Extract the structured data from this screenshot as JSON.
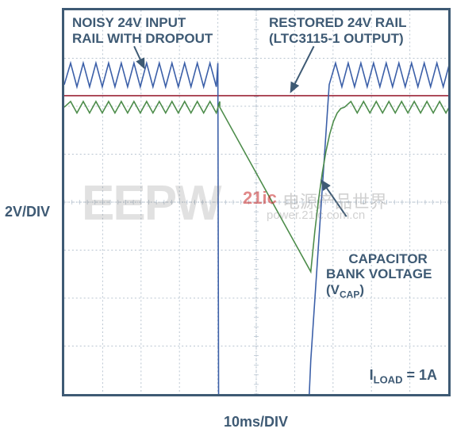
{
  "chart": {
    "type": "line",
    "frame_color": "#3e5a74",
    "background_color": "#ffffff",
    "grid_color": "#b8c4d0",
    "grid_dash": "2 3",
    "divisions_x": 10,
    "divisions_y": 8,
    "x_per_div": "10ms/DIV",
    "y_per_div": "2V/DIV",
    "label_fontsize": 18,
    "label_color": "#3e5a74",
    "arrow_color": "#3e5a74",
    "arrow_stroke_width": 2,
    "annotations": {
      "noisy_input": "NOISY 24V INPUT\nRAIL WITH DROPOUT",
      "restored": "RESTORED 24V RAIL\n(LTC3115-1 OUTPUT)",
      "cap_bank": "CAPACITOR\nBANK VOLTAGE\n(V",
      "cap_bank_sub": "CAP",
      "cap_bank_close": ")",
      "iload_prefix": "I",
      "iload_sub": "LOAD",
      "iload_suffix": " = 1A"
    },
    "annotation_fontsize": 17,
    "series": {
      "blue": {
        "color": "#3b5fa8",
        "stroke_width": 1.6,
        "ripple_amplitude": 0.45,
        "ripple_period": 0.33,
        "baseline_y": 1.55,
        "dropout_start_x": 4.0,
        "dropout_end_x": 6.42,
        "dropout_min_y": 7.3,
        "recover_end_x": 6.9
      },
      "red": {
        "color": "#9a2234",
        "stroke_width": 1.6,
        "baseline_y": 1.78
      },
      "green": {
        "color": "#4c8c4a",
        "stroke_width": 1.6,
        "ripple_amplitude": 0.12,
        "ripple_period": 0.33,
        "baseline_y": 2.02,
        "drop_start_x": 4.05,
        "drop_min_x": 6.42,
        "drop_min_y": 5.45,
        "recover_end_x": 7.3
      }
    },
    "arrows": [
      {
        "from_x": 1.82,
        "from_y": 0.75,
        "to_x": 2.08,
        "to_y": 1.2
      },
      {
        "from_x": 6.5,
        "from_y": 0.75,
        "to_x": 5.9,
        "to_y": 1.7
      },
      {
        "from_x": 7.35,
        "from_y": 4.3,
        "to_x": 6.7,
        "to_y": 3.55
      }
    ]
  },
  "watermarks": {
    "eepw": {
      "text": "EEPW",
      "color_opacity": 0.22,
      "color": "#a8a8a8",
      "fontsize": 62,
      "weight": "900"
    },
    "cn_main": {
      "text": "电源产品世界",
      "color": "rgba(140,140,140,0.35)",
      "fontsize": 22
    },
    "cn_sub": {
      "text": "power.21ic.com.cn",
      "color": "rgba(140,140,140,0.35)",
      "fontsize": 15
    },
    "twentyone": {
      "text": "21ic",
      "color": "rgba(200,40,40,0.55)",
      "fontsize": 22,
      "weight": "bold"
    }
  }
}
